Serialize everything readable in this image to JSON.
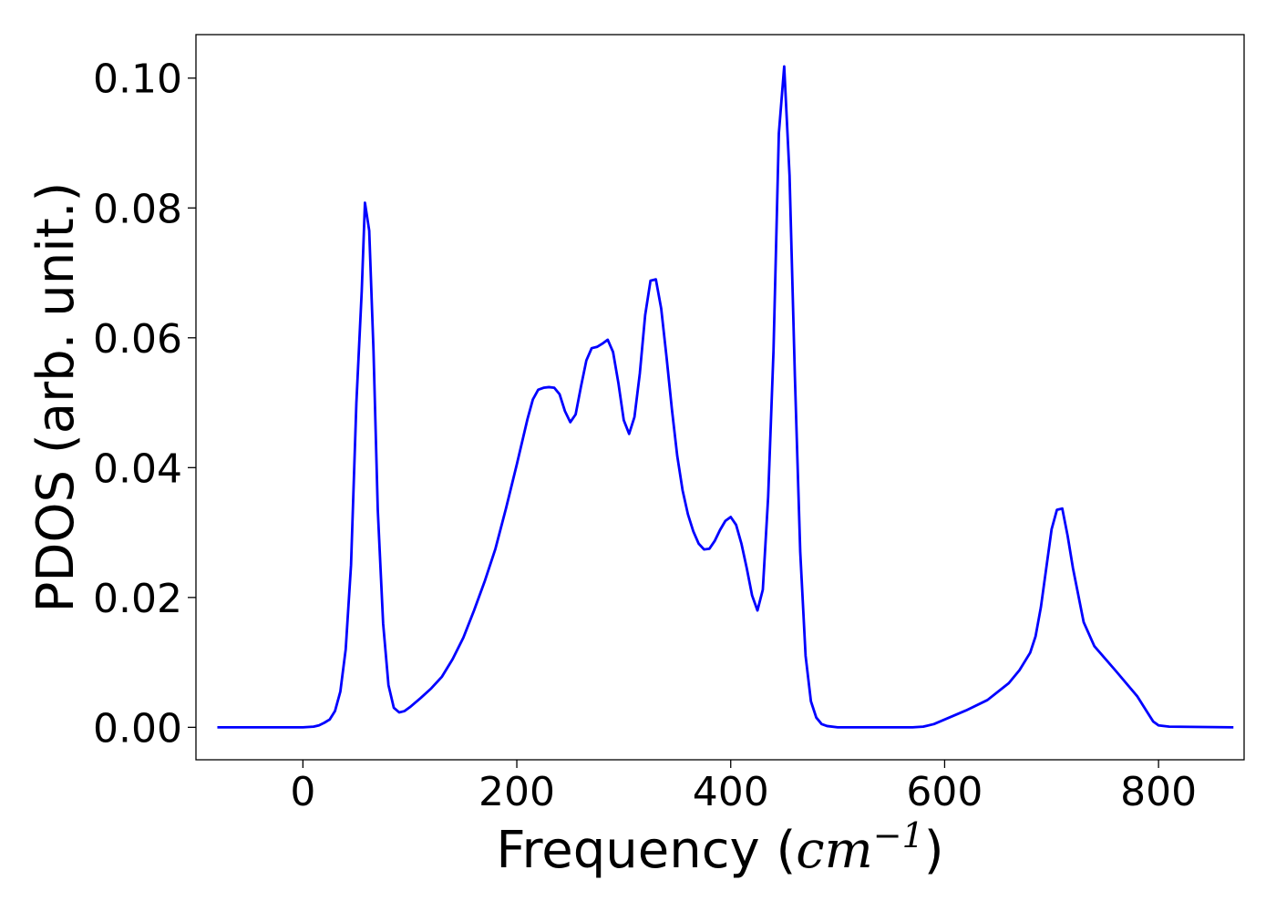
{
  "chart_data": {
    "type": "line",
    "title": "",
    "xlabel_prefix": "Frequency (",
    "xlabel_unit": "cm",
    "xlabel_exp": "−1",
    "xlabel_suffix": ")",
    "ylabel": "PDOS (arb. unit.)",
    "xlim": [
      -100,
      880
    ],
    "ylim": [
      -0.005,
      0.1067
    ],
    "xticks": [
      0,
      200,
      400,
      600,
      800
    ],
    "xtick_labels": [
      "0",
      "200",
      "400",
      "600",
      "800"
    ],
    "yticks": [
      0.0,
      0.02,
      0.04,
      0.06,
      0.08,
      0.1
    ],
    "ytick_labels": [
      "0.00",
      "0.02",
      "0.04",
      "0.06",
      "0.08",
      "0.10"
    ],
    "grid": false,
    "line_color": "#0000ff",
    "series": [
      {
        "x": [
          -80,
          -20,
          0,
          10,
          15,
          20,
          25,
          30,
          35,
          40,
          45,
          50,
          55,
          58,
          62,
          66,
          70,
          75,
          80,
          85,
          90,
          95,
          100,
          110,
          120,
          130,
          140,
          150,
          160,
          170,
          180,
          190,
          200,
          210,
          215,
          220,
          225,
          230,
          235,
          240,
          245,
          250,
          255,
          260,
          265,
          270,
          275,
          280,
          285,
          290,
          295,
          300,
          305,
          310,
          315,
          320,
          325,
          330,
          335,
          340,
          345,
          350,
          355,
          360,
          365,
          370,
          375,
          380,
          385,
          390,
          395,
          400,
          405,
          410,
          415,
          420,
          425,
          430,
          435,
          440,
          445,
          450,
          455,
          460,
          465,
          470,
          475,
          480,
          485,
          490,
          500,
          520,
          550,
          570,
          580,
          590,
          600,
          620,
          640,
          660,
          670,
          680,
          685,
          690,
          695,
          700,
          705,
          710,
          715,
          720,
          730,
          740,
          760,
          780,
          790,
          795,
          800,
          810,
          870
        ],
        "y": [
          0,
          0,
          0,
          0.0001,
          0.0003,
          0.0007,
          0.0012,
          0.0025,
          0.0055,
          0.012,
          0.025,
          0.05,
          0.0672,
          0.0808,
          0.0765,
          0.058,
          0.0335,
          0.016,
          0.0065,
          0.003,
          0.0023,
          0.0025,
          0.0031,
          0.0045,
          0.006,
          0.0078,
          0.0105,
          0.0138,
          0.018,
          0.0225,
          0.0275,
          0.0338,
          0.0405,
          0.0475,
          0.0505,
          0.052,
          0.0523,
          0.0524,
          0.0523,
          0.0513,
          0.0487,
          0.047,
          0.0482,
          0.0525,
          0.0565,
          0.0584,
          0.0586,
          0.0591,
          0.0597,
          0.0578,
          0.053,
          0.0473,
          0.0452,
          0.0478,
          0.0545,
          0.0635,
          0.0688,
          0.069,
          0.0645,
          0.057,
          0.049,
          0.0418,
          0.0365,
          0.0328,
          0.0302,
          0.0283,
          0.0274,
          0.0275,
          0.0287,
          0.0304,
          0.0318,
          0.0324,
          0.0312,
          0.0283,
          0.0245,
          0.0203,
          0.018,
          0.0212,
          0.0355,
          0.058,
          0.0915,
          0.1018,
          0.085,
          0.054,
          0.027,
          0.011,
          0.004,
          0.0015,
          0.0005,
          0.0002,
          0,
          0,
          0,
          0,
          0.0001,
          0.0005,
          0.0012,
          0.0026,
          0.0042,
          0.0068,
          0.0088,
          0.0115,
          0.014,
          0.0185,
          0.0245,
          0.0305,
          0.0335,
          0.0337,
          0.0295,
          0.0245,
          0.0162,
          0.0125,
          0.0087,
          0.0048,
          0.0022,
          0.0009,
          0.0003,
          0.0001,
          0
        ]
      }
    ]
  }
}
